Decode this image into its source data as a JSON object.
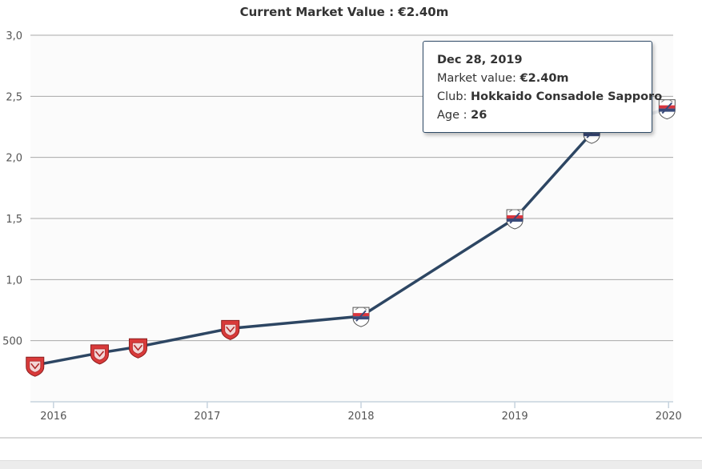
{
  "chart_data": {
    "type": "line",
    "title": "Current Market Value : €2.40m",
    "xlabel": "",
    "ylabel": "",
    "x_ticks": [
      "2016",
      "2017",
      "2018",
      "2019",
      "2020"
    ],
    "x_tick_values": [
      2016,
      2017,
      2018,
      2019,
      2020
    ],
    "y_ticks": [
      "500",
      "1,0",
      "1,5",
      "2,0",
      "2,5",
      "3,0"
    ],
    "y_tick_values": [
      0.5,
      1.0,
      1.5,
      2.0,
      2.5,
      3.0
    ],
    "xlim": [
      2015.85,
      2020.03
    ],
    "ylim": [
      0.0,
      3.0
    ],
    "series": [
      {
        "name": "Market value",
        "color": "#2d4663",
        "x": [
          2015.88,
          2016.3,
          2016.55,
          2017.15,
          2018.0,
          2019.0,
          2019.5,
          2019.99
        ],
        "values": [
          0.3,
          0.4,
          0.45,
          0.6,
          0.7,
          1.5,
          2.2,
          2.4
        ],
        "clubs": [
          "red-crest",
          "red-crest",
          "red-crest",
          "red-crest",
          "sapporo-crest",
          "sapporo-crest",
          "sapporo-crest",
          "sapporo-crest"
        ]
      }
    ],
    "grid": true
  },
  "tooltip": {
    "date": "Dec 28, 2019",
    "market_label": "Market value: ",
    "market_value": "€2.40m",
    "club_label": "Club: ",
    "club_value": "Hokkaido Consadole Sapporo",
    "age_label": "Age : ",
    "age_value": "26"
  },
  "colors": {
    "line": "#2d4663",
    "grid": "#a9a9a9",
    "plot_bg": "#fbfbfb",
    "axis": "#c6d3de",
    "red_crest": "#d93a3a",
    "sapporo_navy": "#3a4b7a",
    "sapporo_red": "#d9363e"
  }
}
